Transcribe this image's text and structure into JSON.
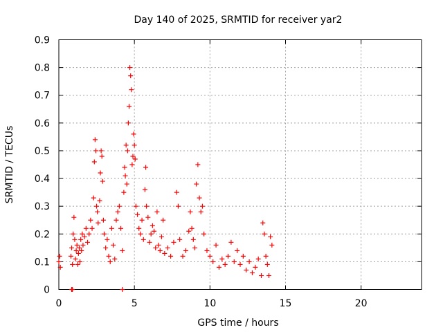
{
  "chart_data": {
    "type": "scatter",
    "title": "Day 140 of 2025, SRMTID for receiver yar2",
    "xlabel": "GPS time / hours",
    "ylabel": "SRMTID / TECUs",
    "xlim": [
      0,
      24
    ],
    "ylim": [
      0,
      0.9
    ],
    "xticks": [
      0,
      5,
      10,
      15,
      20
    ],
    "xtick_labels": [
      "0",
      "5",
      "10",
      "15",
      "20"
    ],
    "yticks": [
      0,
      0.1,
      0.2,
      0.3,
      0.4,
      0.5,
      0.6,
      0.7,
      0.8,
      0.9
    ],
    "ytick_labels": [
      "0",
      "0.1",
      "0.2",
      "0.3",
      "0.4",
      "0.5",
      "0.6",
      "0.7",
      "0.8",
      "0.9"
    ],
    "grid": true,
    "marker": "+",
    "marker_color": "#ff0000",
    "series": [
      {
        "name": "SRMTID",
        "x": [
          0.0,
          0.05,
          0.1,
          0.8,
          0.85,
          0.9,
          0.95,
          1.0,
          1.05,
          1.1,
          1.15,
          1.2,
          1.25,
          1.3,
          1.35,
          1.4,
          1.45,
          1.5,
          1.55,
          1.6,
          1.7,
          1.8,
          1.9,
          2.0,
          2.1,
          2.2,
          2.3,
          2.35,
          2.4,
          2.45,
          2.5,
          2.55,
          2.6,
          2.7,
          2.75,
          2.8,
          2.85,
          2.9,
          2.95,
          3.0,
          3.1,
          3.2,
          3.3,
          3.4,
          3.5,
          3.6,
          3.7,
          3.8,
          3.9,
          4.0,
          4.1,
          4.2,
          4.3,
          4.35,
          4.4,
          4.45,
          4.5,
          4.55,
          4.6,
          4.65,
          4.7,
          4.75,
          4.8,
          4.85,
          4.9,
          4.95,
          5.0,
          5.05,
          5.1,
          5.2,
          5.3,
          5.4,
          5.5,
          5.6,
          5.7,
          5.75,
          5.8,
          5.9,
          6.0,
          6.1,
          6.2,
          6.3,
          6.4,
          6.5,
          6.6,
          6.7,
          6.8,
          6.9,
          7.0,
          7.2,
          7.4,
          7.6,
          7.8,
          7.9,
          8.0,
          8.2,
          8.4,
          8.6,
          8.7,
          8.8,
          8.9,
          9.0,
          9.1,
          9.2,
          9.3,
          9.4,
          9.5,
          9.6,
          9.8,
          10.0,
          10.2,
          10.4,
          10.6,
          10.8,
          11.0,
          11.2,
          11.4,
          11.6,
          11.8,
          12.0,
          12.2,
          12.4,
          12.6,
          12.8,
          13.0,
          13.2,
          13.4,
          13.5,
          13.6,
          13.7,
          13.8,
          13.9,
          14.0,
          14.1,
          0.85,
          0.9,
          4.2
        ],
        "y": [
          0.1,
          0.12,
          0.08,
          0.12,
          0.15,
          0.09,
          0.2,
          0.26,
          0.18,
          0.11,
          0.14,
          0.16,
          0.09,
          0.13,
          0.15,
          0.1,
          0.18,
          0.14,
          0.2,
          0.16,
          0.19,
          0.22,
          0.17,
          0.2,
          0.25,
          0.22,
          0.33,
          0.46,
          0.54,
          0.5,
          0.3,
          0.28,
          0.24,
          0.32,
          0.42,
          0.5,
          0.48,
          0.39,
          0.25,
          0.2,
          0.15,
          0.18,
          0.12,
          0.1,
          0.22,
          0.16,
          0.11,
          0.25,
          0.28,
          0.3,
          0.22,
          0.14,
          0.35,
          0.44,
          0.41,
          0.52,
          0.38,
          0.5,
          0.6,
          0.66,
          0.8,
          0.77,
          0.72,
          0.45,
          0.48,
          0.56,
          0.52,
          0.47,
          0.3,
          0.27,
          0.22,
          0.2,
          0.25,
          0.18,
          0.36,
          0.44,
          0.3,
          0.26,
          0.17,
          0.2,
          0.23,
          0.21,
          0.15,
          0.28,
          0.16,
          0.14,
          0.19,
          0.25,
          0.13,
          0.15,
          0.12,
          0.17,
          0.35,
          0.3,
          0.18,
          0.12,
          0.14,
          0.21,
          0.28,
          0.22,
          0.18,
          0.15,
          0.38,
          0.45,
          0.33,
          0.28,
          0.3,
          0.2,
          0.14,
          0.12,
          0.1,
          0.16,
          0.08,
          0.11,
          0.09,
          0.12,
          0.17,
          0.1,
          0.14,
          0.09,
          0.12,
          0.07,
          0.1,
          0.06,
          0.08,
          0.11,
          0.05,
          0.24,
          0.2,
          0.12,
          0.09,
          0.05,
          0.19,
          0.16,
          0.0,
          0.0,
          0.0
        ]
      }
    ]
  }
}
